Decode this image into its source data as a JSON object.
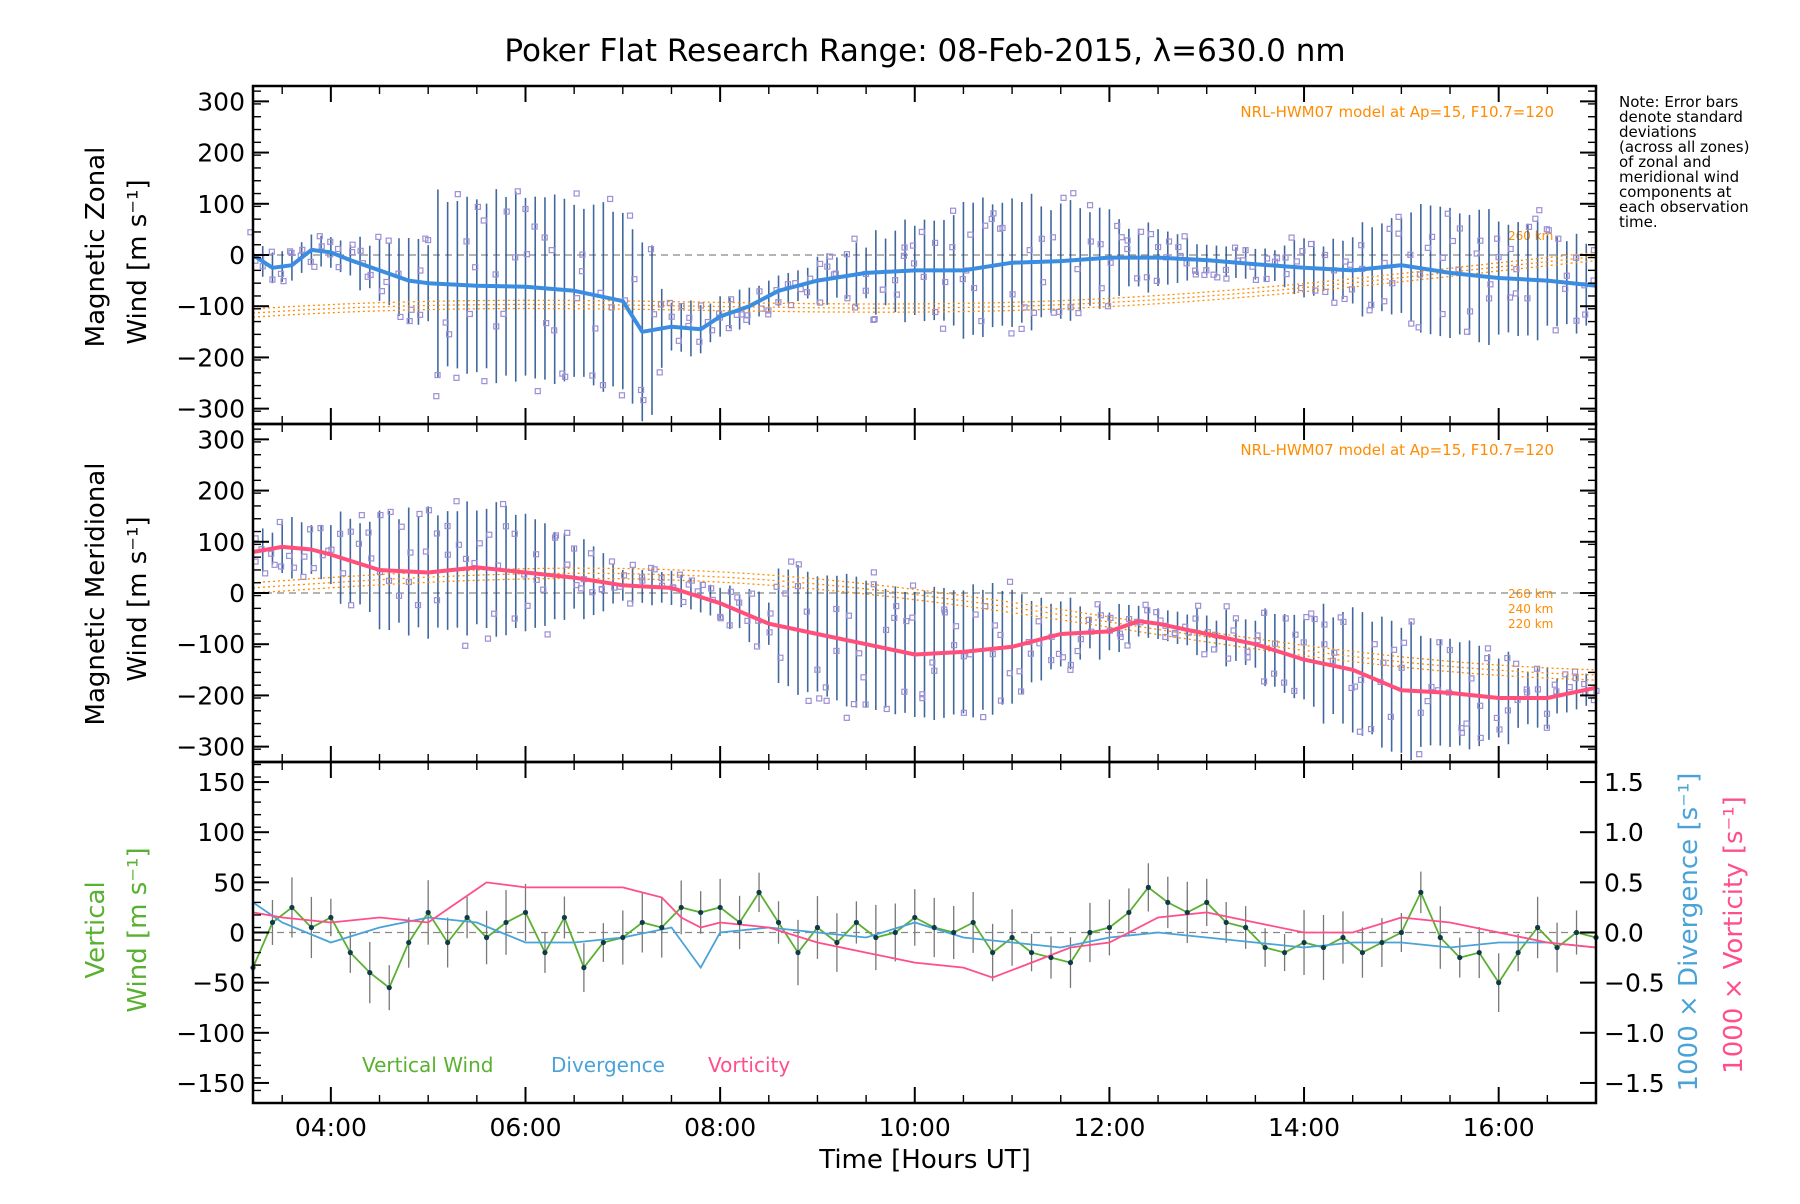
{
  "page": {
    "title": "Poker Flat Research Range: 08-Feb-2015, λ=630.0 nm",
    "note_lines": [
      "Note: Error bars",
      "denote standard",
      "deviations",
      "(across all zones)",
      "of zonal and",
      "meridional wind",
      "components at",
      "each observation",
      "time."
    ],
    "model_label": "NRL-HWM07 model at Ap=15, F10.7=120",
    "alt_labels_zonal": [
      "260 km"
    ],
    "alt_labels_meridional": [
      "260 km",
      "240 km",
      "220 km"
    ],
    "colors": {
      "zonal_mean": "#3a8de0",
      "meridional_mean": "#ff4f7a",
      "error_bar": "#1f4e8c",
      "scatter": "#9b8fd6",
      "model": "#ff8c00",
      "vertical": "#5ab031",
      "divergence": "#4aa3d8",
      "vorticity": "#ff4f8a",
      "vertical_points": "#103a4a"
    }
  },
  "chart_data": [
    {
      "type": "line",
      "panel": "zonal",
      "ylabel": "Magnetic Zonal",
      "ylabel2": "Wind",
      "yunit": "[m s⁻¹]",
      "ylim": [
        -330,
        330
      ],
      "yticks": [
        300,
        200,
        100,
        0,
        -100,
        -200,
        -300
      ],
      "xlim": [
        3.2,
        17.0
      ],
      "grid": false,
      "series": [
        {
          "name": "",
          "x": [
            3.2,
            3.4,
            3.6,
            3.8,
            4.0,
            4.2,
            4.5,
            4.8,
            5.0,
            5.5,
            6.0,
            6.5,
            7.0,
            7.2,
            7.5,
            7.8,
            8.0,
            8.3,
            8.6,
            9.0,
            9.5,
            10.0,
            10.5,
            11.0,
            11.5,
            12.0,
            12.5,
            13.0,
            13.5,
            14.0,
            14.5,
            15.0,
            15.5,
            16.0,
            16.5,
            17.0
          ],
          "y": [
            0,
            -25,
            -20,
            10,
            5,
            -10,
            -30,
            -50,
            -55,
            -60,
            -62,
            -70,
            -90,
            -150,
            -140,
            -145,
            -120,
            -100,
            -70,
            -50,
            -35,
            -30,
            -30,
            -15,
            -12,
            -5,
            -5,
            -10,
            -18,
            -25,
            -30,
            -20,
            -35,
            -45,
            -50,
            -60
          ]
        }
      ],
      "error_halfwidth_from": [
        160,
        200,
        230,
        80,
        140,
        60,
        110,
        100,
        100,
        60,
        80,
        70
      ]
    },
    {
      "type": "line",
      "panel": "meridional",
      "ylabel": "Magnetic Meridional",
      "ylabel2": "Wind",
      "yunit": "[m s⁻¹]",
      "ylim": [
        -330,
        330
      ],
      "yticks": [
        300,
        200,
        100,
        0,
        -100,
        -200,
        -300
      ],
      "xlim": [
        3.2,
        17.0
      ],
      "grid": false,
      "series": [
        {
          "name": "",
          "x": [
            3.2,
            3.5,
            3.8,
            4.0,
            4.5,
            5.0,
            5.5,
            6.0,
            6.5,
            7.0,
            7.5,
            8.0,
            8.5,
            9.0,
            9.5,
            10.0,
            10.5,
            11.0,
            11.5,
            12.0,
            12.3,
            12.5,
            13.0,
            13.5,
            14.0,
            14.5,
            15.0,
            15.5,
            16.0,
            16.5,
            17.0
          ],
          "y": [
            80,
            90,
            85,
            75,
            45,
            40,
            50,
            40,
            30,
            15,
            10,
            -20,
            -60,
            -80,
            -100,
            -120,
            -115,
            -105,
            -80,
            -75,
            -55,
            -60,
            -80,
            -100,
            -130,
            -150,
            -190,
            -195,
            -205,
            -205,
            -185
          ]
        }
      ]
    },
    {
      "type": "line",
      "panel": "vertical",
      "ylabel": "Vertical",
      "ylabel2": "Wind",
      "yunit": "[m s⁻¹]",
      "ylim": [
        -170,
        170
      ],
      "yticks": [
        150,
        100,
        50,
        0,
        -50,
        -100,
        -150
      ],
      "y2label1": "1000 × Divergence",
      "y2unit1": "[s⁻¹]",
      "y2label2": "1000 × Vorticity",
      "y2unit2": "[s⁻¹]",
      "y2lim": [
        -1.7,
        1.7
      ],
      "y2ticks": [
        1.5,
        1.0,
        0.5,
        0.0,
        -0.5,
        -1.0,
        -1.5
      ],
      "y2tick_labels": [
        "1.5",
        "1.0",
        "0.5",
        "0.0",
        "−0.5",
        "−1.0",
        "−1.5"
      ],
      "xlim": [
        3.2,
        17.0
      ],
      "xticks": [
        4,
        6,
        8,
        10,
        12,
        14,
        16
      ],
      "xtick_labels": [
        "04:00",
        "06:00",
        "08:00",
        "10:00",
        "12:00",
        "14:00",
        "16:00"
      ],
      "xlabel": "Time [Hours UT]",
      "legend": [
        "Vertical Wind",
        "Divergence",
        "Vorticity"
      ],
      "series": [
        {
          "name": "Vertical Wind",
          "x": [
            3.2,
            3.4,
            3.6,
            3.8,
            4.0,
            4.2,
            4.4,
            4.6,
            4.8,
            5.0,
            5.2,
            5.4,
            5.6,
            5.8,
            6.0,
            6.2,
            6.4,
            6.6,
            6.8,
            7.0,
            7.2,
            7.4,
            7.6,
            7.8,
            8.0,
            8.2,
            8.4,
            8.6,
            8.8,
            9.0,
            9.2,
            9.4,
            9.6,
            9.8,
            10.0,
            10.2,
            10.4,
            10.6,
            10.8,
            11.0,
            11.2,
            11.4,
            11.6,
            11.8,
            12.0,
            12.2,
            12.4,
            12.6,
            12.8,
            13.0,
            13.2,
            13.4,
            13.6,
            13.8,
            14.0,
            14.2,
            14.4,
            14.6,
            14.8,
            15.0,
            15.2,
            15.4,
            15.6,
            15.8,
            16.0,
            16.2,
            16.4,
            16.6,
            16.8,
            17.0
          ],
          "y": [
            -35,
            10,
            25,
            5,
            15,
            -20,
            -40,
            -55,
            -10,
            20,
            -10,
            15,
            -5,
            10,
            20,
            -20,
            15,
            -35,
            -10,
            -5,
            10,
            5,
            25,
            20,
            25,
            10,
            40,
            10,
            -20,
            5,
            -10,
            10,
            -5,
            0,
            15,
            5,
            0,
            10,
            -20,
            -5,
            -20,
            -25,
            -30,
            0,
            5,
            20,
            45,
            30,
            20,
            30,
            10,
            5,
            -15,
            -20,
            -10,
            -15,
            -5,
            -20,
            -10,
            0,
            40,
            -5,
            -25,
            -20,
            -50,
            -20,
            5,
            -15,
            0,
            -5
          ]
        },
        {
          "name": "Divergence",
          "axis": "y2",
          "x": [
            3.2,
            3.5,
            4.0,
            4.5,
            5.0,
            5.5,
            6.0,
            6.5,
            7.0,
            7.5,
            7.8,
            8.0,
            8.5,
            9.0,
            9.5,
            10.0,
            10.5,
            11.0,
            11.5,
            12.0,
            12.5,
            13.0,
            13.5,
            14.0,
            14.5,
            15.0,
            15.5,
            16.0,
            16.5,
            17.0
          ],
          "y": [
            0.3,
            0.1,
            -0.1,
            0.05,
            0.15,
            0.1,
            -0.1,
            -0.1,
            -0.05,
            0.05,
            -0.35,
            0.0,
            0.05,
            0.0,
            -0.05,
            0.1,
            -0.05,
            -0.1,
            -0.15,
            -0.05,
            0.0,
            -0.05,
            -0.1,
            -0.15,
            -0.1,
            -0.1,
            -0.15,
            -0.1,
            -0.1,
            -0.15
          ]
        },
        {
          "name": "Vorticity",
          "axis": "y2",
          "x": [
            3.2,
            3.5,
            4.0,
            4.5,
            5.0,
            5.3,
            5.6,
            6.0,
            6.5,
            7.0,
            7.4,
            7.6,
            7.8,
            8.0,
            8.5,
            9.0,
            9.5,
            10.0,
            10.5,
            10.8,
            11.2,
            11.6,
            12.0,
            12.5,
            13.0,
            13.5,
            14.0,
            14.5,
            15.0,
            15.5,
            16.0,
            16.5,
            17.0
          ],
          "y": [
            0.2,
            0.15,
            0.1,
            0.15,
            0.1,
            0.3,
            0.5,
            0.45,
            0.45,
            0.45,
            0.35,
            0.15,
            0.05,
            0.1,
            0.05,
            -0.1,
            -0.2,
            -0.3,
            -0.35,
            -0.45,
            -0.3,
            -0.15,
            -0.1,
            0.15,
            0.2,
            0.1,
            0.0,
            0.0,
            0.15,
            0.1,
            0.0,
            -0.1,
            -0.15
          ]
        }
      ]
    }
  ]
}
